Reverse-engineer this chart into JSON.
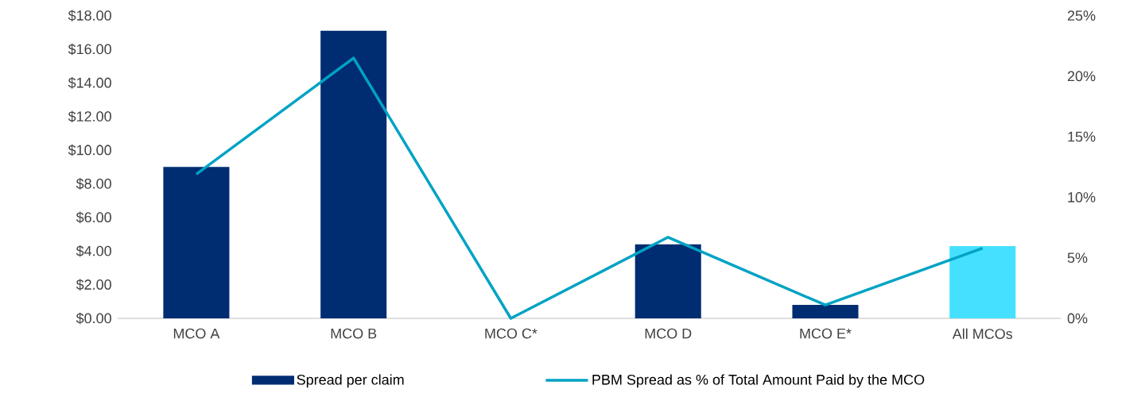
{
  "chart_data": {
    "type": "bar",
    "categories": [
      "MCO A",
      "MCO B",
      "MCO C*",
      "MCO D",
      "MCO E*",
      "All MCOs"
    ],
    "series": [
      {
        "name": "Spread per claim",
        "color": "#002d72",
        "colors": [
          "#002d72",
          "#002d72",
          "#002d72",
          "#002d72",
          "#002d72",
          "#45e0ff"
        ],
        "values": [
          9.0,
          17.1,
          0,
          4.4,
          0.8,
          4.3
        ]
      },
      {
        "name": "PBM Spread as % of Total Amount Paid by the MCO",
        "type": "line",
        "axis": "y2",
        "color": "#00a3c4",
        "marker": "none",
        "line_style": "solid",
        "values": [
          11.9,
          21.5,
          0,
          6.7,
          1.1,
          5.8
        ]
      }
    ],
    "ylim": [
      0,
      18
    ],
    "yticks": [
      {
        "value": 0,
        "label": "$0.00"
      },
      {
        "value": 2,
        "label": "$2.00"
      },
      {
        "value": 4,
        "label": "$4.00"
      },
      {
        "value": 6,
        "label": "$6.00"
      },
      {
        "value": 8,
        "label": "$8.00"
      },
      {
        "value": 10,
        "label": "$10.00"
      },
      {
        "value": 12,
        "label": "$12.00"
      },
      {
        "value": 14,
        "label": "$14.00"
      },
      {
        "value": 16,
        "label": "$16.00"
      },
      {
        "value": 18,
        "label": "$18.00"
      }
    ],
    "y2lim": [
      0,
      25
    ],
    "y2ticks": [
      {
        "value": 0,
        "label": "0%"
      },
      {
        "value": 5,
        "label": "5%"
      },
      {
        "value": 10,
        "label": "10%"
      },
      {
        "value": 15,
        "label": "15%"
      },
      {
        "value": 20,
        "label": "20%"
      },
      {
        "value": 25,
        "label": "25%"
      }
    ],
    "legend": "bottom",
    "grid": false
  }
}
